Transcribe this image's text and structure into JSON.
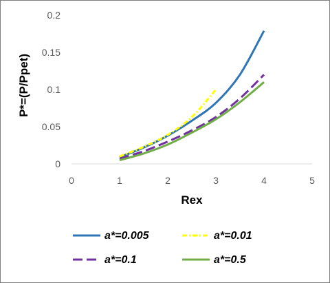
{
  "chart_data": {
    "type": "line",
    "xlabel": "Rex",
    "ylabel": "P*=(P/Ppet)",
    "xlim": [
      0,
      5
    ],
    "ylim": [
      0,
      0.2
    ],
    "x_ticks": [
      "0",
      "1",
      "2",
      "3",
      "4",
      "5"
    ],
    "y_ticks": [
      "0",
      "0.05",
      "0.1",
      "0.15",
      "0.2"
    ],
    "grid": false,
    "legend_position": "bottom",
    "series": [
      {
        "name": "a*=0.005",
        "color": "#2e75b6",
        "dash": "solid",
        "x": [
          1,
          1.5,
          2,
          2.5,
          3,
          3.5,
          4
        ],
        "y": [
          0.009,
          0.022,
          0.038,
          0.058,
          0.082,
          0.12,
          0.179
        ]
      },
      {
        "name": "a*=0.01",
        "color": "#ffff00",
        "dash": "dash-dot",
        "x": [
          1,
          1.5,
          2,
          2.5,
          3
        ],
        "y": [
          0.01,
          0.023,
          0.039,
          0.063,
          0.1
        ]
      },
      {
        "name": "a*=0.1",
        "color": "#7030a0",
        "dash": "long-dash",
        "x": [
          1,
          1.5,
          2,
          2.5,
          3,
          3.5,
          4
        ],
        "y": [
          0.007,
          0.017,
          0.03,
          0.045,
          0.063,
          0.088,
          0.12
        ]
      },
      {
        "name": "a*=0.5",
        "color": "#70ad47",
        "dash": "solid",
        "x": [
          1,
          1.5,
          2,
          2.5,
          3,
          3.5,
          4
        ],
        "y": [
          0.005,
          0.014,
          0.026,
          0.042,
          0.06,
          0.083,
          0.11
        ]
      }
    ]
  }
}
